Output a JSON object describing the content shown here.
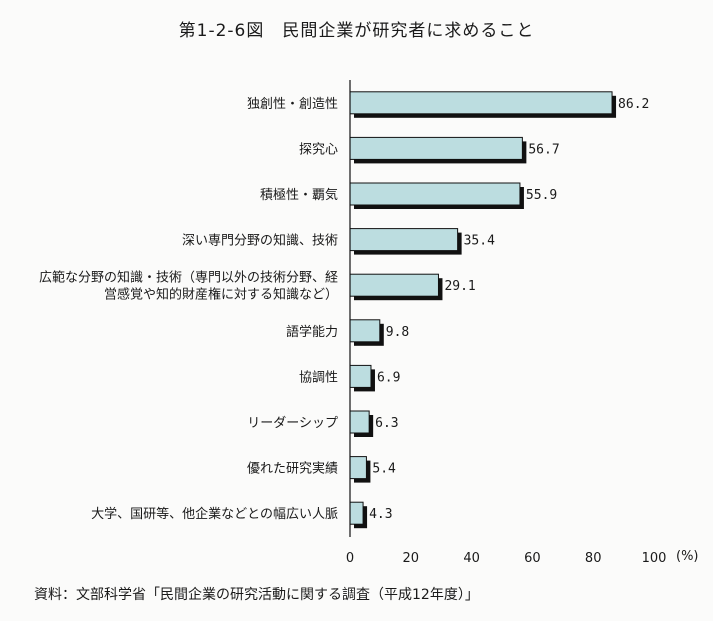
{
  "title": "第1-2-6図　民間企業が研究者に求めること",
  "source": "資料：文部科学省「民間企業の研究活動に関する調査（平成12年度）」",
  "colors": {
    "bar_fill": "#bcdde0",
    "bar_shadow": "#111111",
    "axis": "#111111"
  },
  "chart_data": {
    "type": "bar",
    "orientation": "horizontal",
    "categories": [
      [
        "独創性・創造性"
      ],
      [
        "探究心"
      ],
      [
        "積極性・覇気"
      ],
      [
        "深い専門分野の知識、技術"
      ],
      [
        "広範な分野の知識・技術（専門以外の技術分野、経",
        "営感覚や知的財産権に対する知識など）"
      ],
      [
        "語学能力"
      ],
      [
        "協調性"
      ],
      [
        "リーダーシップ"
      ],
      [
        "優れた研究実績"
      ],
      [
        "大学、国研等、他企業などとの幅広い人脈"
      ]
    ],
    "values": [
      86.2,
      56.7,
      55.9,
      35.4,
      29.1,
      9.8,
      6.9,
      6.3,
      5.4,
      4.3
    ],
    "value_labels": [
      "86.2",
      "56.7",
      "55.9",
      "35.4",
      "29.1",
      "9.8",
      "6.9",
      "6.3",
      "5.4",
      "4.3"
    ],
    "xlim": [
      0,
      100
    ],
    "xticks": [
      0,
      20,
      40,
      60,
      80,
      100
    ],
    "xunit": "(%)",
    "grid": false
  }
}
